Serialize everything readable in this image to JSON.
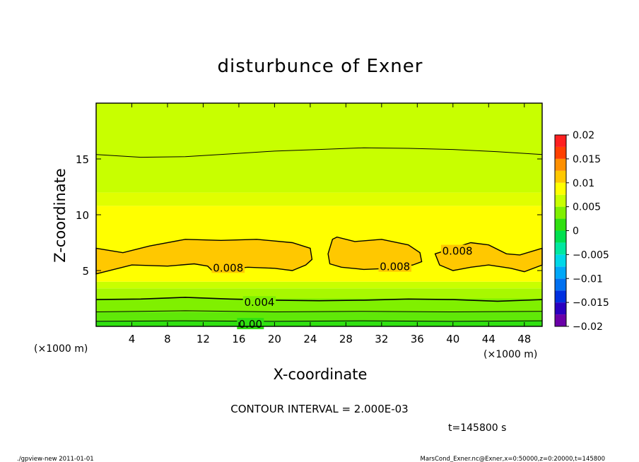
{
  "chart_data": {
    "type": "heatmap",
    "title": "disturbunce of Exner",
    "xlabel": "X-coordinate",
    "ylabel": "Z-coordinate",
    "x_unit_left": "(×1000 m)",
    "x_unit_right": "(×1000 m)",
    "xlim": [
      0,
      50
    ],
    "ylim": [
      0,
      20
    ],
    "x_ticks": [
      4,
      8,
      12,
      16,
      20,
      24,
      28,
      32,
      36,
      40,
      44,
      48
    ],
    "y_ticks": [
      5,
      10,
      15
    ],
    "contour_interval_text": "CONTOUR INTERVAL = 2.000E-03",
    "time_text": "t=145800 s",
    "footer_left": "./gpview-new  2011-01-01",
    "footer_right": "MarsCond_Exner.nc@Exner,x=0:50000,z=0:20000,t=145800",
    "colorbar": {
      "levels": [
        -0.02,
        -0.0175,
        -0.015,
        -0.0125,
        -0.01,
        -0.0075,
        -0.005,
        -0.0025,
        0,
        0.0025,
        0.005,
        0.0075,
        0.01,
        0.0125,
        0.015,
        0.0175,
        0.02
      ],
      "colors": [
        "#6a00a8",
        "#2a00c0",
        "#0030e0",
        "#0070f0",
        "#00a8f8",
        "#00d8e8",
        "#00e8a0",
        "#00e050",
        "#30e010",
        "#80f000",
        "#c8ff00",
        "#ffff00",
        "#ffc800",
        "#ff9000",
        "#ff4000",
        "#ff2020",
        "#ff8080"
      ],
      "tick_labels": [
        "0.02",
        "0.015",
        "0.01",
        "0.005",
        "0",
        "−0.005",
        "−0.01",
        "−0.015",
        "−0.02"
      ],
      "tick_values": [
        0.02,
        0.015,
        0.01,
        0.005,
        0,
        -0.005,
        -0.01,
        -0.015,
        -0.02
      ]
    },
    "filled_bands": [
      {
        "z_from": 0.0,
        "z_to": 0.5,
        "value": 0.001,
        "color": "#30e010"
      },
      {
        "z_from": 0.5,
        "z_to": 1.3,
        "value": 0.002,
        "color": "#60e808"
      },
      {
        "z_from": 1.3,
        "z_to": 2.5,
        "value": 0.003,
        "color": "#80f000"
      },
      {
        "z_from": 2.5,
        "z_to": 3.4,
        "value": 0.0045,
        "color": "#a8f800"
      },
      {
        "z_from": 3.4,
        "z_to": 4.0,
        "value": 0.0055,
        "color": "#c8ff00"
      },
      {
        "z_from": 4.0,
        "z_to": 10.8,
        "value": 0.007,
        "color": "#ffff00"
      },
      {
        "z_from": 10.8,
        "z_to": 12.0,
        "value": 0.006,
        "color": "#e0ff00"
      },
      {
        "z_from": 12.0,
        "z_to": 20.0,
        "value": 0.005,
        "color": "#c8ff00"
      }
    ],
    "contour_labels": [
      {
        "text": "0.008",
        "x": 14.8,
        "z": 5.3
      },
      {
        "text": "0.008",
        "x": 33.5,
        "z": 5.4
      },
      {
        "text": "0.008",
        "x": 40.5,
        "z": 6.8
      },
      {
        "text": "0.004",
        "x": 18.3,
        "z": 2.2
      },
      {
        "text": "0.00",
        "x": 17.3,
        "z": 0.25
      }
    ],
    "contour_lines": [
      {
        "value": 0.01,
        "x": [
          0,
          5,
          10,
          15,
          20,
          25,
          30,
          35,
          40,
          45,
          50
        ],
        "z": [
          15.4,
          15.15,
          15.2,
          15.45,
          15.7,
          15.85,
          16.0,
          15.95,
          15.85,
          15.65,
          15.4
        ]
      },
      {
        "value": 0.004,
        "x": [
          0,
          5,
          10,
          15,
          20,
          25,
          30,
          35,
          40,
          45,
          50
        ],
        "z": [
          2.4,
          2.45,
          2.6,
          2.45,
          2.35,
          2.3,
          2.35,
          2.45,
          2.4,
          2.25,
          2.4
        ]
      },
      {
        "value": 0.002,
        "x": [
          0,
          10,
          20,
          30,
          40,
          50
        ],
        "z": [
          1.3,
          1.4,
          1.3,
          1.35,
          1.3,
          1.35
        ]
      },
      {
        "value": 0.0,
        "x": [
          0,
          10,
          20,
          30,
          40,
          50
        ],
        "z": [
          0.45,
          0.5,
          0.45,
          0.5,
          0.45,
          0.5
        ]
      }
    ],
    "contour_regions": [
      {
        "value": 0.008,
        "x": [
          0,
          3,
          6,
          10,
          14,
          18,
          22,
          24,
          24.2,
          23.5,
          22,
          20,
          17,
          13,
          12.5,
          11,
          8,
          4,
          0
        ],
        "z": [
          7.0,
          6.6,
          7.2,
          7.8,
          7.7,
          7.8,
          7.5,
          7.0,
          6.0,
          5.5,
          5.0,
          5.2,
          5.3,
          5.0,
          5.4,
          5.6,
          5.4,
          5.5,
          4.7
        ]
      },
      {
        "value": 0.008,
        "x": [
          26,
          26.5,
          27,
          29,
          32,
          35,
          36.3,
          36.5,
          35.5,
          33,
          30,
          27.5,
          26.2,
          26
        ],
        "z": [
          6.5,
          7.8,
          8.0,
          7.6,
          7.8,
          7.3,
          6.6,
          5.8,
          5.5,
          5.2,
          5.1,
          5.3,
          5.6,
          6.5
        ]
      },
      {
        "value": 0.008,
        "x": [
          38,
          40,
          42,
          44,
          46,
          47.5,
          50,
          50,
          48,
          46.5,
          44,
          42,
          40,
          38.5,
          38
        ],
        "z": [
          6.5,
          7.0,
          7.5,
          7.3,
          6.5,
          6.4,
          7.0,
          5.5,
          4.9,
          5.2,
          5.5,
          5.3,
          5.0,
          5.5,
          6.5
        ]
      }
    ]
  }
}
